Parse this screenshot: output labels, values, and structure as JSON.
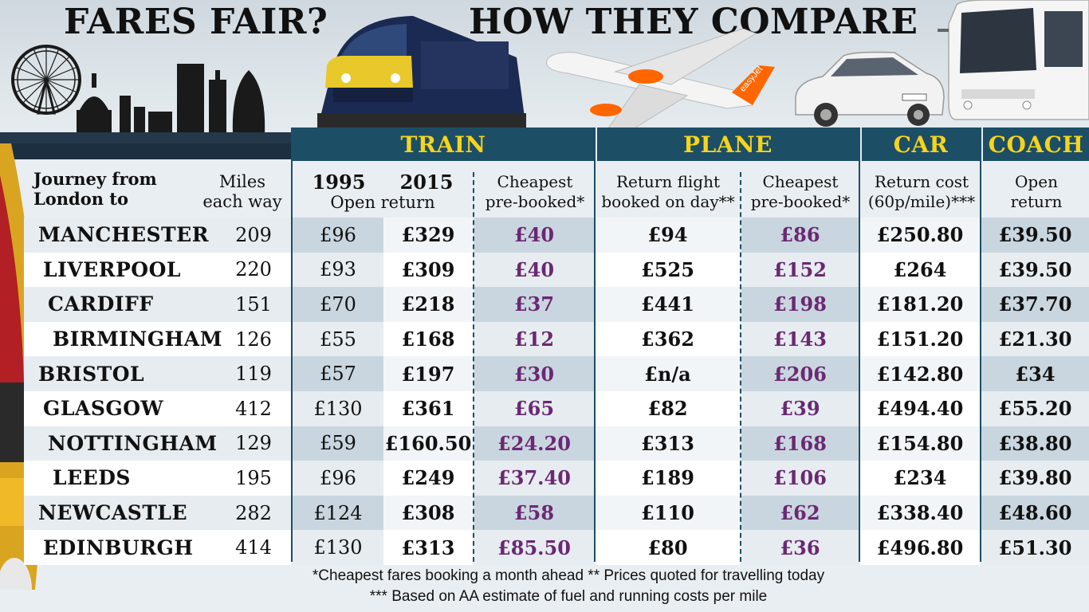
{
  "header": {
    "title_left": "FARES FAIR?",
    "title_right": "HOW THEY COMPARE",
    "train_livery_text": "",
    "plane_livery_text": "easyJet",
    "car_plate_text": ""
  },
  "groups": [
    {
      "key": "train",
      "label": "TRAIN"
    },
    {
      "key": "plane",
      "label": "PLANE"
    },
    {
      "key": "car",
      "label": "CAR"
    },
    {
      "key": "coach",
      "label": "COACH"
    }
  ],
  "columns": {
    "journey": "Journey from\nLondon to",
    "miles": "Miles\neach way",
    "y1995": "1995",
    "y2015": "2015",
    "open_return": "Open return",
    "train_cheapest": "Cheapest\npre-booked*",
    "plane_return": "Return flight\nbooked on day**",
    "plane_cheapest": "Cheapest\npre-booked*",
    "car_cost": "Return cost\n(60p/mile)***",
    "coach_open": "Open\nreturn"
  },
  "rows": [
    {
      "city": "MANCHESTER",
      "miles": "209",
      "t1995": "£96",
      "t2015": "£329",
      "tcheap": "£40",
      "pday": "£94",
      "pcheap": "£86",
      "car": "£250.80",
      "coach": "£39.50"
    },
    {
      "city": "LIVERPOOL",
      "miles": "220",
      "t1995": "£93",
      "t2015": "£309",
      "tcheap": "£40",
      "pday": "£525",
      "pcheap": "£152",
      "car": "£264",
      "coach": "£39.50"
    },
    {
      "city": "CARDIFF",
      "miles": "151",
      "t1995": "£70",
      "t2015": "£218",
      "tcheap": "£37",
      "pday": "£441",
      "pcheap": "£198",
      "car": "£181.20",
      "coach": "£37.70"
    },
    {
      "city": "BIRMINGHAM",
      "miles": "126",
      "t1995": "£55",
      "t2015": "£168",
      "tcheap": "£12",
      "pday": "£362",
      "pcheap": "£143",
      "car": "£151.20",
      "coach": "£21.30"
    },
    {
      "city": "BRISTOL",
      "miles": "119",
      "t1995": "£57",
      "t2015": "£197",
      "tcheap": "£30",
      "pday": "£n/a",
      "pcheap": "£206",
      "car": "£142.80",
      "coach": "£34"
    },
    {
      "city": "GLASGOW",
      "miles": "412",
      "t1995": "£130",
      "t2015": "£361",
      "tcheap": "£65",
      "pday": "£82",
      "pcheap": "£39",
      "car": "£494.40",
      "coach": "£55.20"
    },
    {
      "city": "NOTTINGHAM",
      "miles": "129",
      "t1995": "£59",
      "t2015": "£160.50",
      "tcheap": "£24.20",
      "pday": "£313",
      "pcheap": "£168",
      "car": "£154.80",
      "coach": "£38.80"
    },
    {
      "city": "LEEDS",
      "miles": "195",
      "t1995": "£96",
      "t2015": "£249",
      "tcheap": "£37.40",
      "pday": "£189",
      "pcheap": "£106",
      "car": "£234",
      "coach": "£39.80"
    },
    {
      "city": "NEWCASTLE",
      "miles": "282",
      "t1995": "£124",
      "t2015": "£308",
      "tcheap": "£58",
      "pday": "£110",
      "pcheap": "£62",
      "car": "£338.40",
      "coach": "£48.60"
    },
    {
      "city": "EDINBURGH",
      "miles": "414",
      "t1995": "£130",
      "t2015": "£313",
      "tcheap": "£85.50",
      "pday": "£80",
      "pcheap": "£36",
      "car": "£496.80",
      "coach": "£51.30"
    }
  ],
  "footnotes": {
    "line1": "*Cheapest fares booking a month ahead ** Prices quoted for travelling today",
    "line2": "*** Based on AA estimate of fuel and running costs per mile"
  },
  "colors": {
    "header_band": "#1c4e66",
    "header_text": "#f6d41b",
    "cheapest_purple": "#6b2873"
  }
}
